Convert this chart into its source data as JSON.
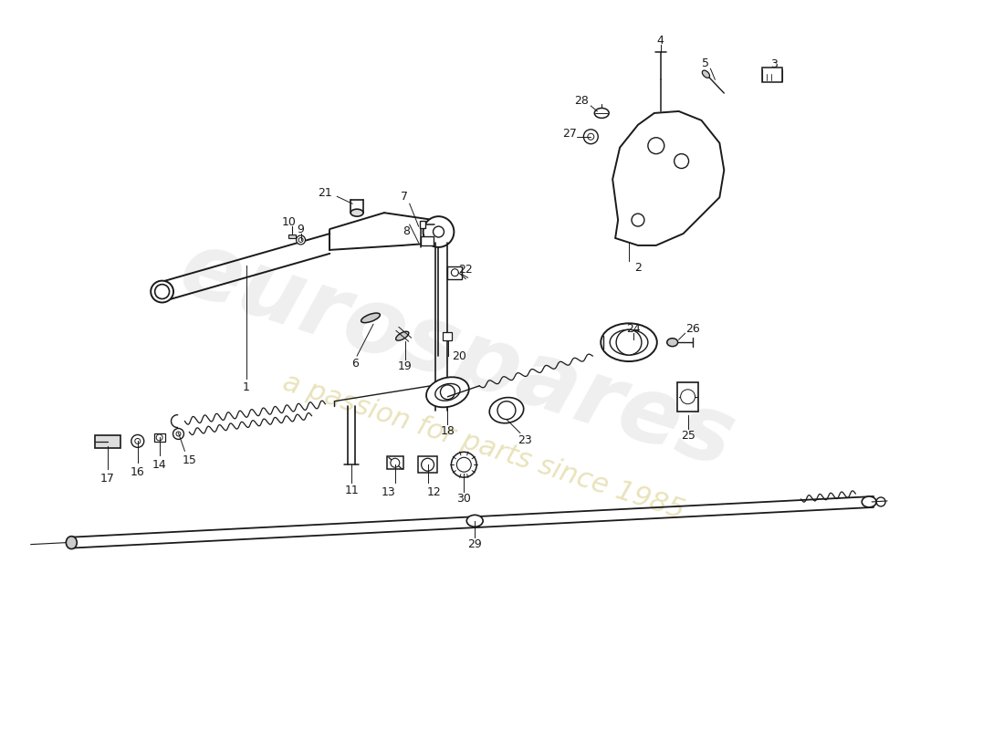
{
  "background_color": "#ffffff",
  "line_color": "#1a1a1a",
  "watermark_text1": "eurospares",
  "watermark_text2": "a passion for parts since 1985",
  "watermark_color1": "#c0c0c0",
  "watermark_color2": "#d4c87a",
  "lw": 1.3
}
